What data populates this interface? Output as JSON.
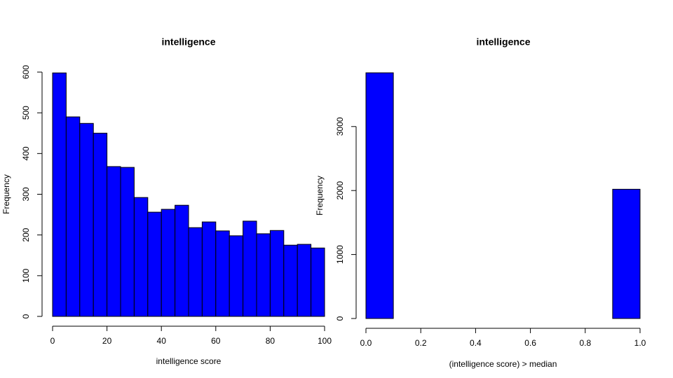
{
  "chart_data": [
    {
      "type": "histogram",
      "title": "intelligence",
      "xlabel": "intelligence score",
      "ylabel": "Frequency",
      "color": "#0000ff",
      "bins": [
        0,
        5,
        10,
        15,
        20,
        25,
        30,
        35,
        40,
        45,
        50,
        55,
        60,
        65,
        70,
        75,
        80,
        85,
        90,
        95,
        100
      ],
      "values": [
        598,
        490,
        474,
        450,
        368,
        366,
        292,
        256,
        263,
        273,
        218,
        232,
        210,
        198,
        234,
        203,
        211,
        175,
        177,
        168
      ],
      "xlim": [
        0,
        100
      ],
      "xticks": [
        0,
        20,
        40,
        60,
        80,
        100
      ],
      "ylim": [
        0,
        600
      ],
      "yticks": [
        0,
        100,
        200,
        300,
        400,
        500,
        600
      ]
    },
    {
      "type": "histogram",
      "title": "intelligence",
      "xlabel": "(intelligence score) > median",
      "ylabel": "Frequency",
      "color": "#0000ff",
      "bins": [
        0,
        0.1,
        0.2,
        0.3,
        0.4,
        0.5,
        0.6,
        0.7,
        0.8,
        0.9,
        1
      ],
      "values": [
        3840,
        0,
        0,
        0,
        0,
        0,
        0,
        0,
        0,
        2020
      ],
      "xlim": [
        0,
        1
      ],
      "xticks": [
        {
          "value": 0,
          "label": "0.0"
        },
        0.2,
        0.4,
        0.6,
        0.8,
        {
          "value": 1,
          "label": "1.0"
        }
      ],
      "ylim": [
        0,
        3840
      ],
      "yticks": [
        0,
        1000,
        2000,
        3000
      ]
    }
  ]
}
